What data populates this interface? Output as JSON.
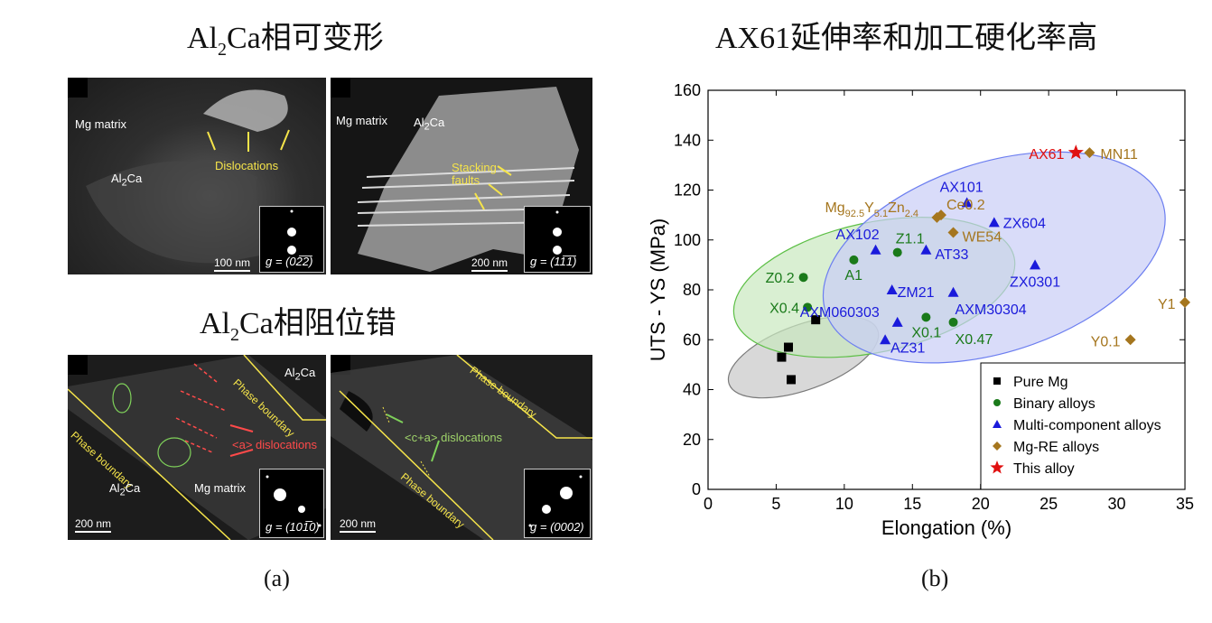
{
  "left": {
    "heading_top": {
      "base": "Al",
      "sub": "2",
      "rest": "Ca相可变形"
    },
    "heading_bottom": {
      "base": "Al",
      "sub": "2",
      "rest": "Ca相阻位错"
    },
    "panel_label": "(a)",
    "img1": {
      "mg_matrix": "Mg matrix",
      "al2ca": "Al",
      "al2ca_sub": "2",
      "al2ca_rest": "Ca",
      "dislocations": "Dislocations",
      "scale": "100 nm",
      "g_prefix": "g",
      "g_value": "= (02̅2̅)"
    },
    "img2": {
      "mg_matrix": "Mg matrix",
      "al2ca": "Al",
      "al2ca_sub": "2",
      "al2ca_rest": "Ca",
      "stacking": "Stacking",
      "faults": "faults",
      "scale": "200 nm",
      "g_prefix": "g",
      "g_value": "= (11̅1̅)"
    },
    "img3": {
      "al2ca_top": "Al",
      "al2ca_top_sub": "2",
      "al2ca_top_rest": "Ca",
      "phase1": "Phase boundary",
      "phase2": "Phase boundary",
      "a_disl": "<a> dislocations",
      "mg_matrix": "Mg matrix",
      "al2ca_bot": "Al",
      "al2ca_bot_sub": "2",
      "al2ca_bot_rest": "Ca",
      "scale": "200 nm",
      "g_prefix": "g",
      "g_value": "= (101̅0)"
    },
    "img4": {
      "phase1": "Phase boundary",
      "phase2": "Phase boundary",
      "ca_disl": "<c+a> dislocations",
      "scale": "200 nm",
      "g_prefix": "g",
      "g_value": "= (0002)"
    }
  },
  "right": {
    "heading": "AX61延伸率和加工硬化率高",
    "panel_label": "(b)"
  },
  "chart_data": {
    "type": "scatter",
    "xlabel": "Elongation (%)",
    "ylabel": "UTS - YS (MPa)",
    "xlim": [
      0,
      35
    ],
    "ylim": [
      0,
      160
    ],
    "xticks": [
      0,
      5,
      10,
      15,
      20,
      25,
      30,
      35
    ],
    "yticks": [
      0,
      20,
      40,
      60,
      80,
      100,
      120,
      140,
      160
    ],
    "legend_position": "bottom-right",
    "series": [
      {
        "name": "Pure Mg",
        "marker": "square",
        "color": "#000000",
        "points": [
          [
            5.4,
            53
          ],
          [
            5.9,
            57
          ],
          [
            6.1,
            44
          ],
          [
            7.9,
            68
          ]
        ]
      },
      {
        "name": "Binary alloys",
        "marker": "circle",
        "color": "#1a7a1a",
        "points": [
          [
            7.0,
            85,
            "Z0.2"
          ],
          [
            7.3,
            73,
            "X0.4"
          ],
          [
            10.7,
            92,
            "A1"
          ],
          [
            13.9,
            95,
            "Z1.1"
          ],
          [
            16.0,
            69,
            "X0.1"
          ],
          [
            18.0,
            67,
            "X0.47"
          ]
        ]
      },
      {
        "name": "Multi-component alloys",
        "marker": "triangle",
        "color": "#1a1adb",
        "points": [
          [
            19.0,
            115,
            "AX101"
          ],
          [
            21.0,
            107,
            "ZX604"
          ],
          [
            12.3,
            96,
            "AX102"
          ],
          [
            16.0,
            96,
            "AT33"
          ],
          [
            24.0,
            90,
            "ZX0301"
          ],
          [
            13.5,
            80,
            "ZM21"
          ],
          [
            18.0,
            79,
            "AXM30304"
          ],
          [
            13.9,
            67,
            "AXM060303"
          ],
          [
            13.0,
            60,
            "AZ31"
          ]
        ]
      },
      {
        "name": "Mg-RE alloys",
        "marker": "diamond",
        "color": "#a5761e",
        "points": [
          [
            28.0,
            135,
            "MN11"
          ],
          [
            16.8,
            109,
            "Mg92.5Y5.1Zn2.4"
          ],
          [
            17.1,
            110,
            "Ce0.2"
          ],
          [
            18.0,
            103,
            "WE54"
          ],
          [
            35.0,
            75,
            "Y1"
          ],
          [
            31.0,
            60,
            "Y0.1"
          ]
        ]
      },
      {
        "name": "This alloy",
        "marker": "star",
        "color": "#e01010",
        "points": [
          [
            27.0,
            135,
            "AX61"
          ]
        ]
      }
    ],
    "ellipses": [
      {
        "cx": 7.0,
        "cy": 53,
        "rx": 5.8,
        "ry": 13,
        "rot": 20,
        "fill": "#c8c8c8",
        "stroke": "#7a7a7a"
      },
      {
        "cx": 12.2,
        "cy": 81,
        "rx": 10.5,
        "ry": 26,
        "rot": 12,
        "fill": "#c9e8bf",
        "stroke": "#5cbf45"
      },
      {
        "cx": 21.0,
        "cy": 93,
        "rx": 13.0,
        "ry": 38,
        "rot": 18,
        "fill": "#c9cdf7",
        "stroke": "#6c7ef0"
      }
    ]
  }
}
